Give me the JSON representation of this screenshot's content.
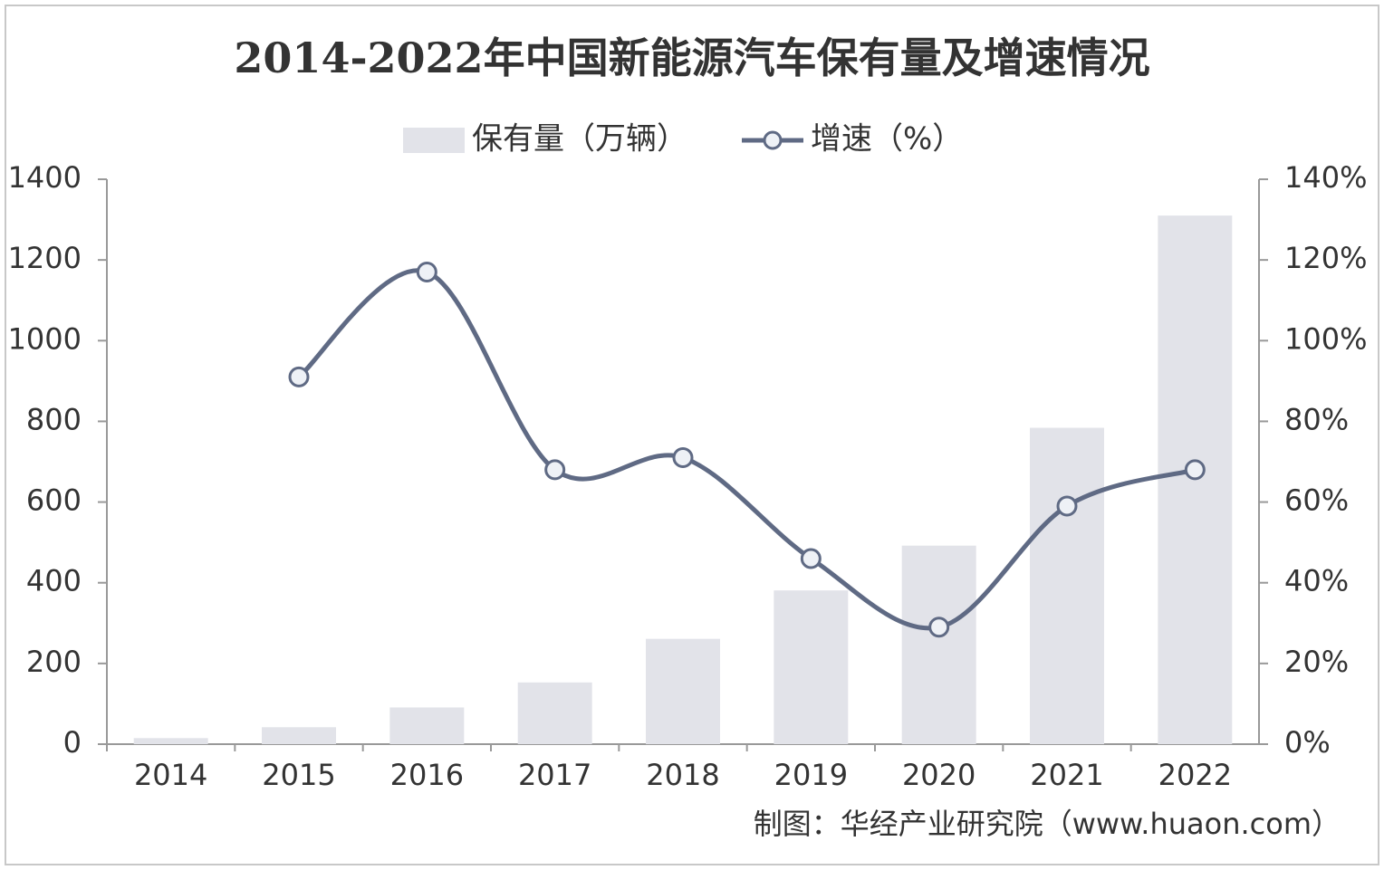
{
  "chart_data": {
    "type": "combo",
    "title": "2014-2022年中国新能源汽车保有量及增速情况",
    "source": "制图：华经产业研究院（www.huaon.com）",
    "categories": [
      "2014",
      "2015",
      "2016",
      "2017",
      "2018",
      "2019",
      "2020",
      "2021",
      "2022"
    ],
    "series": [
      {
        "name": "保有量（万辆）",
        "type": "bar",
        "color": "#e2e3e9",
        "values": [
          15,
          42,
          91,
          153,
          261,
          381,
          492,
          784,
          1310
        ]
      },
      {
        "name": "增速（%）",
        "type": "line",
        "axis": "y2",
        "color": "#5f6a84",
        "values": [
          null,
          91,
          117,
          68,
          71,
          46,
          29,
          59,
          68
        ]
      }
    ],
    "ylim": [
      0,
      1400
    ],
    "yticks": [
      0,
      200,
      400,
      600,
      800,
      1000,
      1200,
      1400
    ],
    "y2lim": [
      0,
      140
    ],
    "y2ticks": [
      {
        "value": 0,
        "label": "0%"
      },
      {
        "value": 20,
        "label": "20%"
      },
      {
        "value": 40,
        "label": "40%"
      },
      {
        "value": 60,
        "label": "60%"
      },
      {
        "value": 80,
        "label": "80%"
      },
      {
        "value": 100,
        "label": "100%"
      },
      {
        "value": 120,
        "label": "120%"
      },
      {
        "value": 140,
        "label": "140%"
      }
    ],
    "grid": false,
    "legend": "top"
  }
}
